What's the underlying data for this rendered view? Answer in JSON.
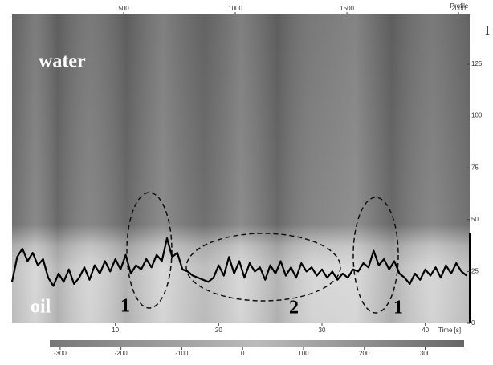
{
  "chart_data": {
    "type": "line",
    "annotations": {
      "water": "water",
      "oil": "oil",
      "region_1a": "1",
      "region_2": "2",
      "region_1b": "1",
      "corner": "I"
    },
    "top_axis_label": "Profile",
    "xlabel": "Time [s]",
    "top_xlim": [
      0,
      2050
    ],
    "top_xticks": [
      500,
      1000,
      1500,
      2000
    ],
    "xlim": [
      0,
      44.3
    ],
    "xticks": [
      10,
      20,
      30,
      40
    ],
    "ylim": [
      0,
      149
    ],
    "yticks": [
      0,
      25,
      50,
      75,
      100,
      125
    ],
    "clim": [
      -317,
      364
    ],
    "cticks": [
      -300,
      -200,
      -100,
      0,
      100,
      200,
      300
    ],
    "color": "#000000",
    "x": [
      0,
      0.5,
      1,
      1.5,
      2,
      2.5,
      3,
      3.5,
      4,
      4.5,
      5,
      5.5,
      6,
      6.5,
      7,
      7.5,
      8,
      8.5,
      9,
      9.5,
      10,
      10.5,
      11,
      11.5,
      12,
      12.5,
      13,
      13.5,
      14,
      14.5,
      15,
      15.5,
      16,
      16.5,
      17,
      17.5,
      18,
      18.5,
      19,
      19.5,
      20,
      20.5,
      21,
      21.5,
      22,
      22.5,
      23,
      23.5,
      24,
      24.5,
      25,
      25.5,
      26,
      26.5,
      27,
      27.5,
      28,
      28.5,
      29,
      29.5,
      30,
      30.5,
      31,
      31.5,
      32,
      32.5,
      33,
      33.5,
      34,
      34.5,
      35,
      35.5,
      36,
      36.5,
      37,
      37.5,
      38,
      38.5,
      39,
      39.5,
      40,
      40.5,
      41,
      41.5,
      42,
      42.5,
      43,
      43.5,
      44
    ],
    "values": [
      20,
      32,
      36,
      30,
      34,
      28,
      31,
      22,
      18,
      24,
      20,
      26,
      19,
      22,
      27,
      21,
      28,
      24,
      30,
      25,
      31,
      26,
      33,
      24,
      28,
      26,
      31,
      27,
      33,
      30,
      41,
      32,
      34,
      26,
      25,
      23,
      22,
      21,
      20,
      22,
      28,
      23,
      32,
      24,
      30,
      22,
      29,
      25,
      27,
      21,
      28,
      24,
      30,
      23,
      27,
      22,
      29,
      25,
      27,
      23,
      26,
      22,
      25,
      21,
      24,
      22,
      26,
      25,
      29,
      27,
      35,
      28,
      31,
      26,
      30,
      24,
      22,
      19,
      24,
      21,
      26,
      23,
      27,
      22,
      28,
      24,
      29,
      25,
      23
    ]
  }
}
